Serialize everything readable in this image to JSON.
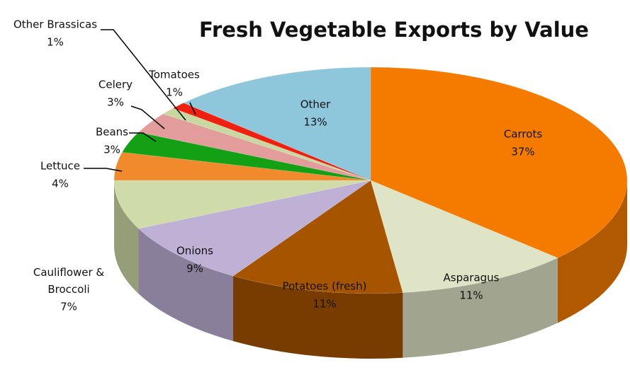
{
  "chart_data": {
    "type": "pie",
    "title": "Fresh Vegetable Exports by Value",
    "categories": [
      "Carrots",
      "Asparagus",
      "Potatoes (fresh)",
      "Onions",
      "Cauliflower & Broccoli",
      "Lettuce",
      "Beans",
      "Celery",
      "Other Brassicas",
      "Tomatoes",
      "Other"
    ],
    "values": [
      37,
      11,
      11,
      9,
      7,
      4,
      3,
      3,
      1,
      1,
      13
    ],
    "value_labels": [
      "37%",
      "11%",
      "11%",
      "9%",
      "7%",
      "4%",
      "3%",
      "3%",
      "1%",
      "1%",
      "13%"
    ],
    "colors": [
      "#f47b00",
      "#dfe4c6",
      "#a65400",
      "#bfb0d6",
      "#cfdba8",
      "#f08a2c",
      "#14a014",
      "#e39c9c",
      "#c9d8a0",
      "#f02010",
      "#8ec6dc"
    ]
  }
}
